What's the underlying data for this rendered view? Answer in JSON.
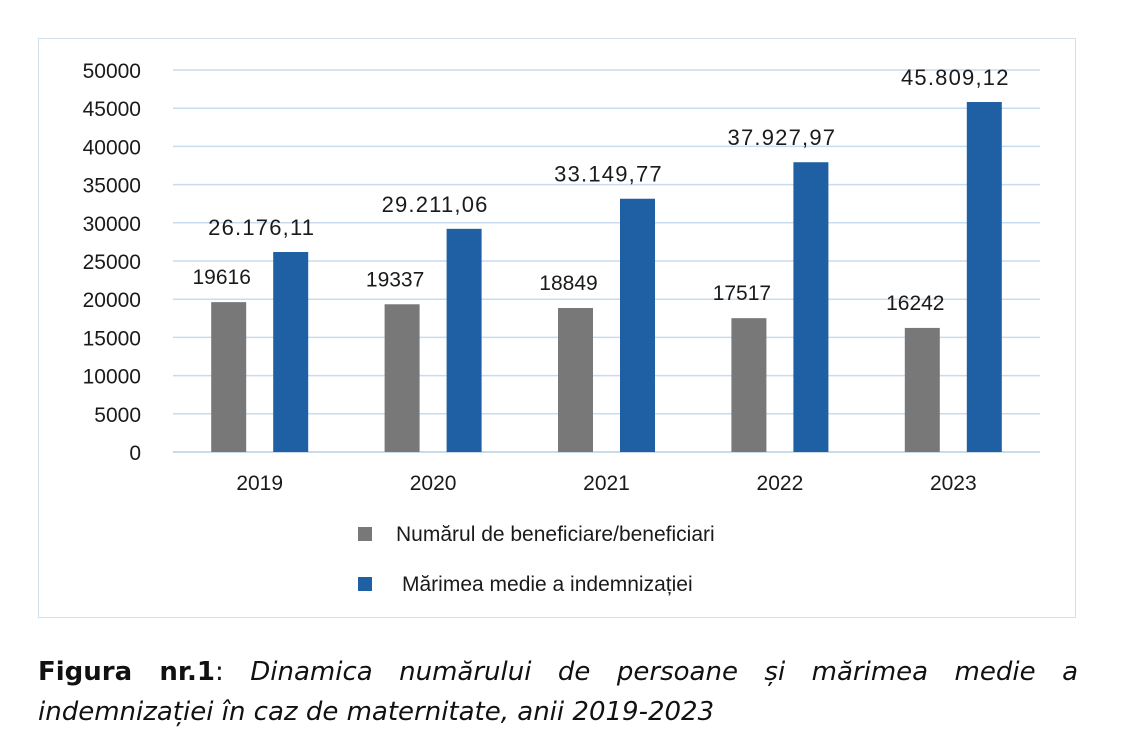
{
  "chart_data": {
    "type": "bar",
    "categories": [
      "2019",
      "2020",
      "2021",
      "2022",
      "2023"
    ],
    "series": [
      {
        "name": "Numărul de beneficiare/beneficiari",
        "color": "#787878",
        "values": [
          19616,
          19337,
          18849,
          17517,
          16242
        ],
        "labels": [
          "19616",
          "19337",
          "18849",
          "17517",
          "16242"
        ]
      },
      {
        "name": "Mărimea medie a indemnizației",
        "color": "#1f5fa3",
        "values": [
          26176.11,
          29211.06,
          33149.77,
          37927.97,
          45809.12
        ],
        "labels": [
          "26.176,11",
          "29.211,06",
          "33.149,77",
          "37.927,97",
          "45.809,12"
        ]
      }
    ],
    "ylim": [
      0,
      50000
    ],
    "yticks": [
      "0",
      "5000",
      "10000",
      "15000",
      "20000",
      "25000",
      "30000",
      "35000",
      "40000",
      "45000",
      "50000"
    ],
    "grid": true,
    "legend_position": "bottom"
  },
  "caption": {
    "label": "Figura nr.1",
    "separator": ": ",
    "text": "Dinamica numărului de persoane și mărimea medie a indemnizației în caz de maternitate, anii 2019-2023"
  }
}
